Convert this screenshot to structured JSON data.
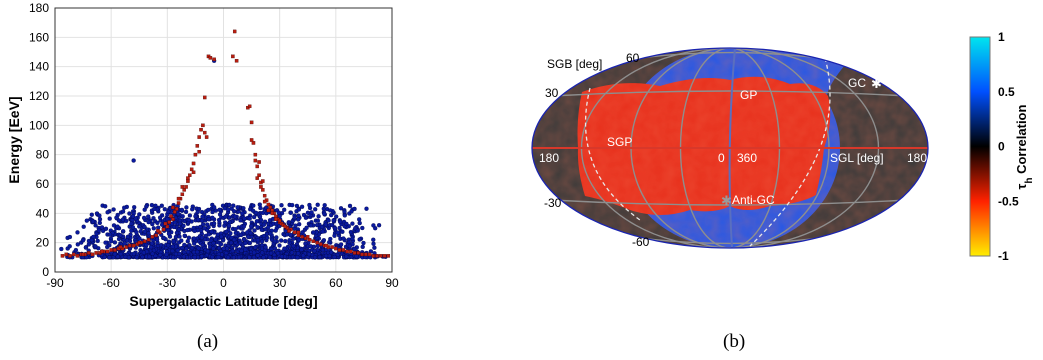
{
  "figure": {
    "captions": [
      "(a)",
      "(b)"
    ]
  },
  "chart_data": [
    {
      "type": "scatter",
      "xlabel": "Supergalactic Latitude  [deg]",
      "ylabel": "Energy  [EeV]",
      "xlim": [
        -90,
        90
      ],
      "ylim": [
        0,
        180
      ],
      "xticks": [
        -90,
        -60,
        -30,
        0,
        30,
        60,
        90
      ],
      "yticks": [
        0,
        20,
        40,
        60,
        80,
        100,
        120,
        140,
        160,
        180
      ],
      "grid": true,
      "colors": {
        "background_events": "#0a1a9e",
        "highlighted_events": "#b81e10"
      },
      "series": [
        {
          "role": "background events (blue)",
          "approx_count": 1800,
          "energy_range": [
            10,
            50
          ],
          "outliers": [
            [
              -48,
              76
            ],
            [
              -5,
              144
            ],
            [
              -73,
              35
            ],
            [
              -63,
              20
            ],
            [
              57,
              42
            ],
            [
              70,
              43
            ],
            [
              44,
              37
            ],
            [
              62,
              30
            ],
            [
              -40,
              34
            ],
            [
              38,
              37
            ],
            [
              50,
              32
            ],
            [
              -55,
              25
            ],
            [
              80,
              22
            ],
            [
              25,
              42
            ],
            [
              -20,
              41
            ],
            [
              -15,
              38
            ],
            [
              10,
              40
            ],
            [
              -30,
              36
            ],
            [
              30,
              38
            ],
            [
              -45,
              31
            ],
            [
              48,
              27
            ]
          ]
        },
        {
          "role": "highlighted events (red)",
          "points": [
            [
              -86,
              11
            ],
            [
              -84,
              12
            ],
            [
              -82,
              11
            ],
            [
              -80,
              12
            ],
            [
              -78,
              11
            ],
            [
              -76,
              12
            ],
            [
              -74,
              12
            ],
            [
              -72,
              13
            ],
            [
              -70,
              12
            ],
            [
              -68,
              13
            ],
            [
              -66,
              13
            ],
            [
              -64,
              14
            ],
            [
              -62,
              14
            ],
            [
              -60,
              15
            ],
            [
              -58,
              15
            ],
            [
              -56,
              16
            ],
            [
              -54,
              16
            ],
            [
              -52,
              17
            ],
            [
              -50,
              18
            ],
            [
              -48,
              18
            ],
            [
              -46,
              19
            ],
            [
              -44,
              20
            ],
            [
              -42,
              21
            ],
            [
              -40,
              22
            ],
            [
              -38,
              24
            ],
            [
              -36,
              25
            ],
            [
              -34,
              27
            ],
            [
              -32,
              29
            ],
            [
              -30,
              31
            ],
            [
              -29,
              34
            ],
            [
              -28,
              38
            ],
            [
              -27,
              36
            ],
            [
              -26,
              41
            ],
            [
              -25,
              43
            ],
            [
              -24,
              47
            ],
            [
              -23,
              50
            ],
            [
              -22,
              53
            ],
            [
              -21,
              56
            ],
            [
              -20,
              58
            ],
            [
              -19,
              62
            ],
            [
              -18,
              66
            ],
            [
              -17,
              70
            ],
            [
              -16,
              74
            ],
            [
              -15,
              80
            ],
            [
              -14,
              86
            ],
            [
              -13,
              92
            ],
            [
              -12,
              97
            ],
            [
              -11,
              100
            ],
            [
              -10,
              95
            ],
            [
              -10,
              119
            ],
            [
              -9,
              92
            ],
            [
              -8,
              147
            ],
            [
              -7,
              146
            ],
            [
              -5,
              145
            ],
            [
              5,
              147
            ],
            [
              6,
              164
            ],
            [
              7,
              144
            ],
            [
              13,
              112
            ],
            [
              14,
              113
            ],
            [
              15,
              102
            ],
            [
              16,
              88
            ],
            [
              17,
              80
            ],
            [
              18,
              72
            ],
            [
              19,
              66
            ],
            [
              20,
              61
            ],
            [
              21,
              56
            ],
            [
              22,
              52
            ],
            [
              23,
              49
            ],
            [
              24,
              46
            ],
            [
              25,
              44
            ],
            [
              26,
              42
            ],
            [
              27,
              40
            ],
            [
              28,
              38
            ],
            [
              29,
              36
            ],
            [
              30,
              34
            ],
            [
              31,
              33
            ],
            [
              32,
              32
            ],
            [
              34,
              30
            ],
            [
              36,
              29
            ],
            [
              38,
              27
            ],
            [
              40,
              25
            ],
            [
              42,
              24
            ],
            [
              44,
              23
            ],
            [
              46,
              22
            ],
            [
              48,
              21
            ],
            [
              50,
              20
            ],
            [
              52,
              19
            ],
            [
              54,
              18
            ],
            [
              56,
              17
            ],
            [
              58,
              17
            ],
            [
              60,
              16
            ],
            [
              62,
              15
            ],
            [
              64,
              15
            ],
            [
              66,
              14
            ],
            [
              68,
              14
            ],
            [
              70,
              13
            ],
            [
              72,
              13
            ],
            [
              74,
              12
            ],
            [
              76,
              12
            ],
            [
              78,
              12
            ],
            [
              80,
              11
            ],
            [
              82,
              11
            ],
            [
              84,
              11
            ],
            [
              86,
              11
            ],
            [
              88,
              11
            ],
            [
              -35,
              28
            ],
            [
              -31,
              33
            ],
            [
              -27,
              44
            ],
            [
              -24,
              50
            ],
            [
              -22,
              58
            ],
            [
              -19,
              64
            ],
            [
              -16,
              68
            ],
            [
              -13,
              82
            ],
            [
              15,
              90
            ],
            [
              17,
              76
            ],
            [
              18,
              64
            ],
            [
              19,
              75
            ],
            [
              20,
              58
            ],
            [
              21,
              62
            ],
            [
              22,
              48
            ],
            [
              24,
              42
            ],
            [
              26,
              40
            ],
            [
              28,
              36
            ],
            [
              30,
              35
            ],
            [
              33,
              31
            ],
            [
              35,
              28
            ],
            [
              40,
              27
            ],
            [
              45,
              24
            ],
            [
              55,
              18
            ],
            [
              -45,
              20
            ],
            [
              -55,
              17
            ],
            [
              -65,
              14
            ],
            [
              -75,
              12
            ]
          ]
        }
      ]
    },
    {
      "type": "heatmap",
      "projection": "hammer-aitoff",
      "colorbar": {
        "label": "τh Correlation",
        "ticks": [
          "1",
          "0.5",
          "0",
          "-0.5",
          "-1"
        ],
        "range": [
          -1,
          1
        ],
        "stops": [
          "#00e5ee",
          "#0050ff",
          "#000000",
          "#ff2200",
          "#ffee00"
        ]
      },
      "annotations": {
        "sgb_axis": "SGB [deg]",
        "sgl_axis": "SGL [deg]",
        "lat_60": "60",
        "lat_30": "30",
        "lat_m30": "-30",
        "lat_m60": "-60",
        "lon_180_left": "180",
        "lon_0": "0",
        "lon_360": "360",
        "lon_180_right": "180",
        "sgp": "SGP",
        "gp": "GP",
        "gc": "GC",
        "anti_gc": "Anti-GC"
      },
      "colors": {
        "masked": "#3a3a3a",
        "correlation_high": "#2458e8",
        "correlation_low": "#e8301c",
        "graticule": "#8e8e8e",
        "equator": "#d8382a",
        "border": "#1a24b0"
      }
    }
  ]
}
